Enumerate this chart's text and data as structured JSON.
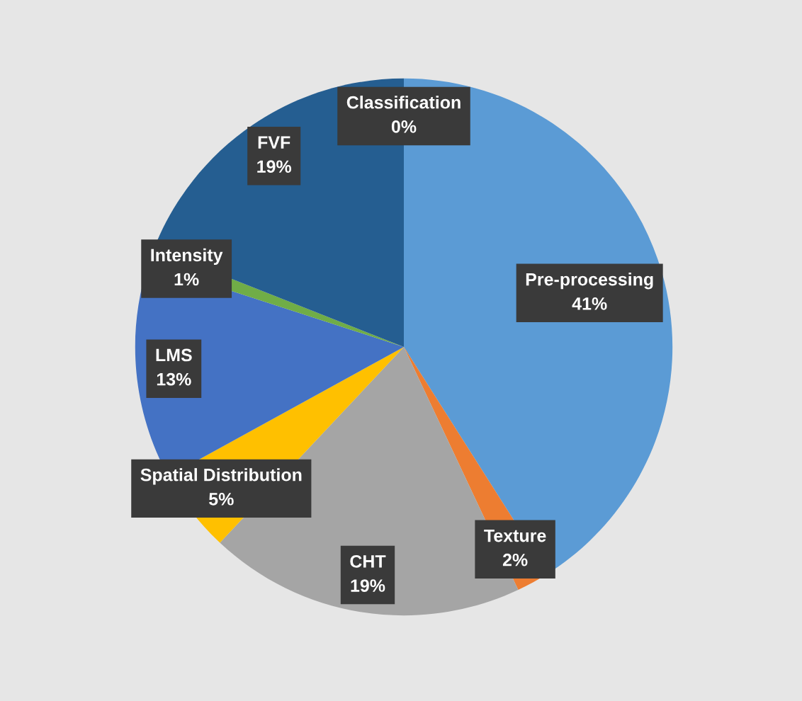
{
  "chart_data": {
    "type": "pie",
    "categories": [
      "Pre-processing",
      "Texture",
      "CHT",
      "Spatial Distribution",
      "LMS",
      "Intensity",
      "FVF",
      "Classification"
    ],
    "values": [
      41,
      2,
      19,
      5,
      13,
      1,
      19,
      0
    ],
    "value_labels": [
      "41%",
      "2%",
      "19%",
      "5%",
      "13%",
      "1%",
      "19%",
      "0%"
    ],
    "colors": [
      "#5b9bd5",
      "#ed7d31",
      "#a5a5a5",
      "#ffc000",
      "#4472c4",
      "#70ad47",
      "#255e91",
      "#9e480e"
    ]
  }
}
